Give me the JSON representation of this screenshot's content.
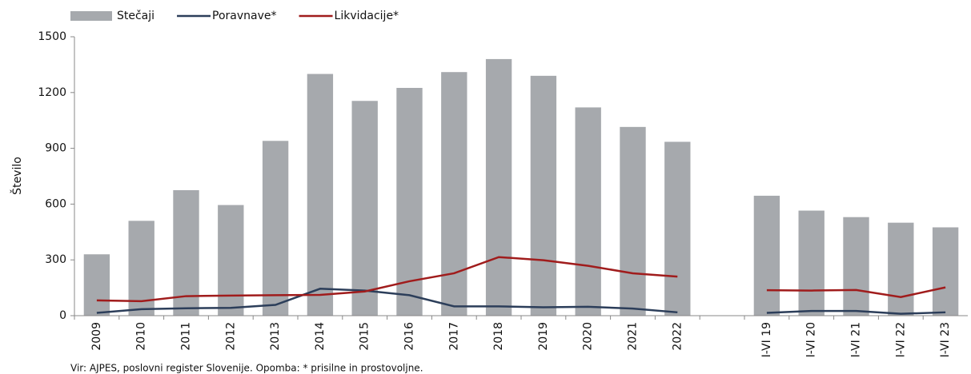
{
  "chart_data": {
    "type": "bar",
    "ylabel": "Število",
    "note": "Vir: AJPES, poslovni register Slovenije. Opomba: * prisilne in prostovoljne.",
    "categories": [
      "2009",
      "2010",
      "2011",
      "2012",
      "2013",
      "2014",
      "2015",
      "2016",
      "2017",
      "2018",
      "2019",
      "2020",
      "2021",
      "2022",
      null,
      "I-VI 19",
      "I-VI 20",
      "I-VI 21",
      "I-VI 22",
      "I-VI 23"
    ],
    "series": [
      {
        "name": "Stečaji",
        "type": "bar",
        "color": "#a6a9ad",
        "values": [
          330,
          510,
          675,
          595,
          940,
          1300,
          1155,
          1225,
          1310,
          1380,
          1290,
          1120,
          1015,
          935,
          null,
          645,
          565,
          530,
          500,
          475
        ]
      },
      {
        "name": "Poravnave*",
        "type": "line",
        "color": "#2c3e5a",
        "values": [
          15,
          35,
          40,
          42,
          58,
          145,
          135,
          110,
          50,
          50,
          45,
          48,
          38,
          18,
          null,
          15,
          25,
          25,
          10,
          18
        ]
      },
      {
        "name": "Likvidacije*",
        "type": "line",
        "color": "#a01c1c",
        "values": [
          82,
          78,
          105,
          108,
          110,
          112,
          130,
          185,
          228,
          315,
          298,
          268,
          228,
          210,
          null,
          137,
          135,
          138,
          100,
          152
        ]
      }
    ],
    "ylim": [
      0,
      1500
    ],
    "yticks": [
      0,
      300,
      600,
      900,
      1200,
      1500
    ],
    "grid": false,
    "legend": "top"
  }
}
